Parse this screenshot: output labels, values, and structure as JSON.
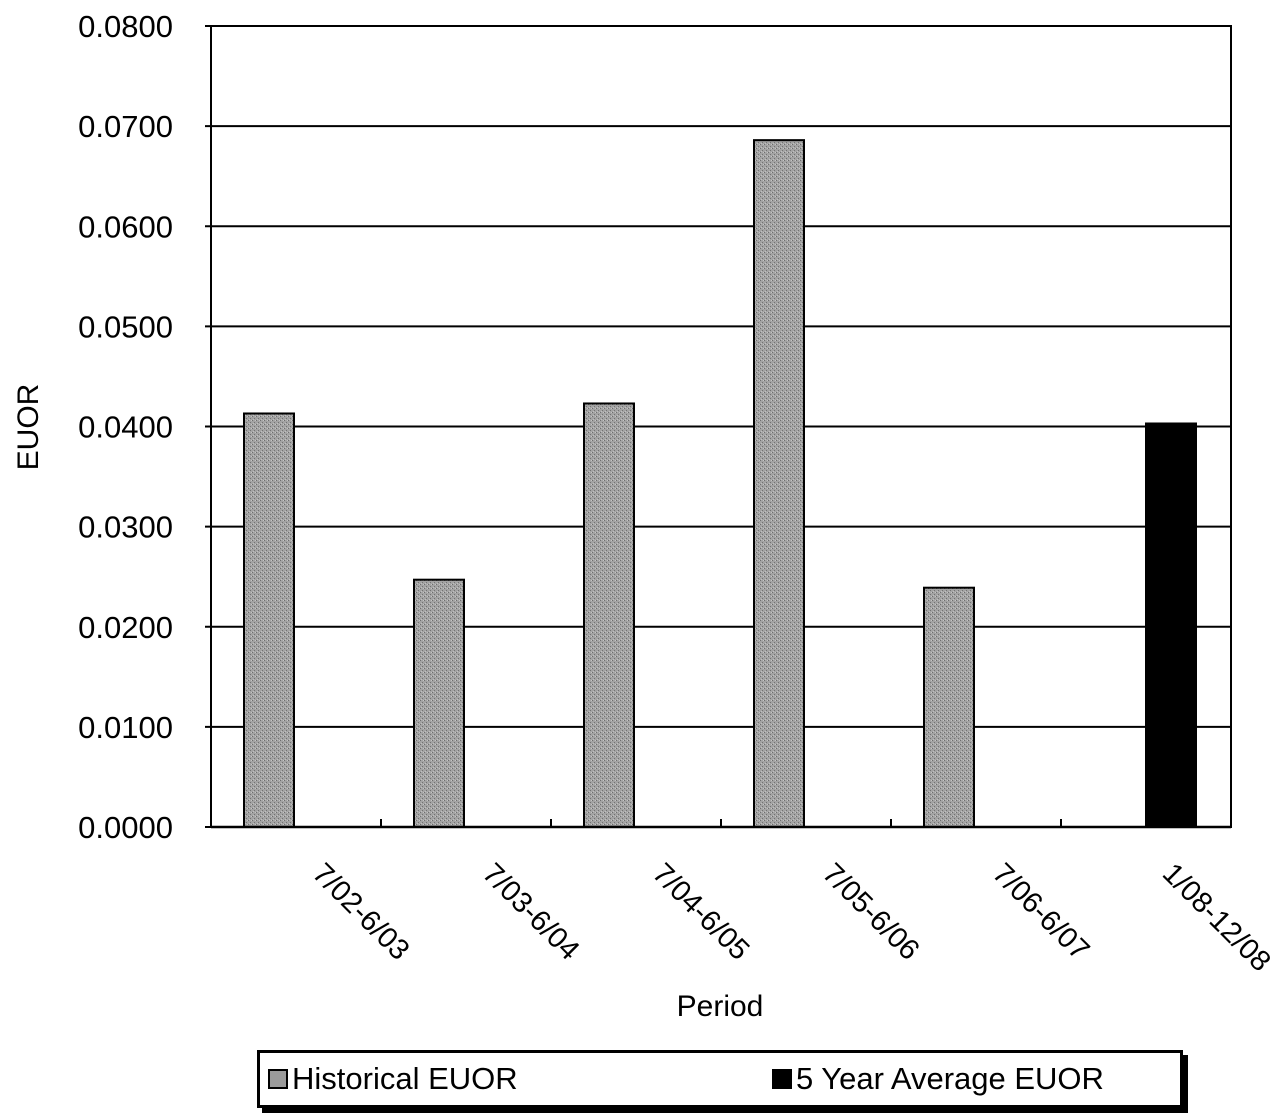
{
  "chart_data": {
    "type": "bar",
    "categories": [
      "7/02-6/03",
      "7/03-6/04",
      "7/04-6/05",
      "7/05-6/06",
      "7/06-6/07",
      "1/08-12/08"
    ],
    "series": [
      {
        "name": "Historical EUOR",
        "values": [
          0.0413,
          0.0247,
          0.0423,
          0.0686,
          0.0239,
          null
        ],
        "color": "#9a9a9a"
      },
      {
        "name": "5 Year Average EUOR",
        "values": [
          null,
          null,
          null,
          null,
          null,
          0.0403
        ],
        "color": "#000000"
      }
    ],
    "yticks": [
      "0.0000",
      "0.0100",
      "0.0200",
      "0.0300",
      "0.0400",
      "0.0500",
      "0.0600",
      "0.0700",
      "0.0800"
    ],
    "ylim": [
      0,
      0.08
    ],
    "xlabel": "Period",
    "ylabel": "EUOR",
    "grid": true,
    "legend_position": "bottom"
  }
}
